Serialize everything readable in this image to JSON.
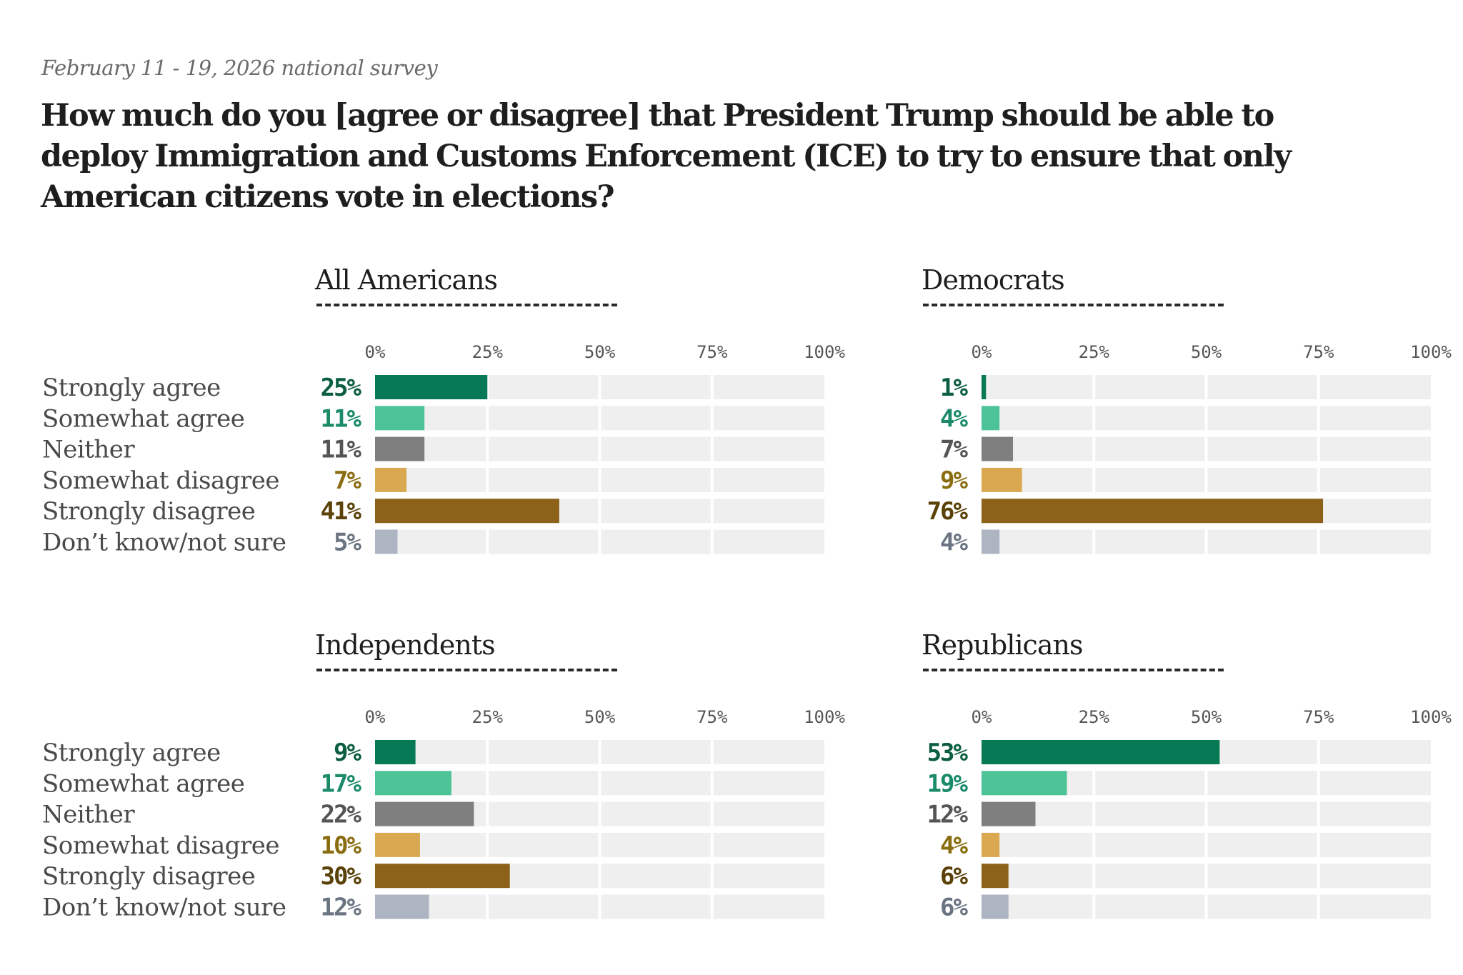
{
  "header": {
    "subtitle": "February 11 - 19, 2026 national survey",
    "title_lines": [
      "How much do you [agree or disagree] that President Trump should be able to",
      "deploy Immigration and Customs Enforcement (ICE) to try to ensure that only",
      "American citizens vote in elections?"
    ]
  },
  "colors": {
    "track": "#efefef",
    "bars": [
      "#077a55",
      "#4cc497",
      "#7f7f7f",
      "#d9a850",
      "#8b6218",
      "#adb4c2"
    ],
    "value_text": [
      "#0b5e3f",
      "#1a8a68",
      "#555555",
      "#8a6d10",
      "#5a4208",
      "#6b7482"
    ]
  },
  "chart_data": [
    {
      "type": "bar",
      "orientation": "horizontal",
      "title": "All Americans",
      "categories": [
        "Strongly agree",
        "Somewhat agree",
        "Neither",
        "Somewhat disagree",
        "Strongly disagree",
        "Don’t know/not sure"
      ],
      "values": [
        25,
        11,
        11,
        7,
        41,
        5
      ],
      "value_labels": [
        "25%",
        "11%",
        "11%",
        "7%",
        "41%",
        "5%"
      ],
      "xlim": [
        0,
        100
      ],
      "xticks": [
        "0%",
        "25%",
        "50%",
        "75%",
        "100%"
      ],
      "show_category_labels": true
    },
    {
      "type": "bar",
      "orientation": "horizontal",
      "title": "Democrats",
      "categories": [
        "Strongly agree",
        "Somewhat agree",
        "Neither",
        "Somewhat disagree",
        "Strongly disagree",
        "Don’t know/not sure"
      ],
      "values": [
        1,
        4,
        7,
        9,
        76,
        4
      ],
      "value_labels": [
        "1%",
        "4%",
        "7%",
        "9%",
        "76%",
        "4%"
      ],
      "xlim": [
        0,
        100
      ],
      "xticks": [
        "0%",
        "25%",
        "50%",
        "75%",
        "100%"
      ],
      "show_category_labels": false
    },
    {
      "type": "bar",
      "orientation": "horizontal",
      "title": "Independents",
      "categories": [
        "Strongly agree",
        "Somewhat agree",
        "Neither",
        "Somewhat disagree",
        "Strongly disagree",
        "Don’t know/not sure"
      ],
      "values": [
        9,
        17,
        22,
        10,
        30,
        12
      ],
      "value_labels": [
        "9%",
        "17%",
        "22%",
        "10%",
        "30%",
        "12%"
      ],
      "xlim": [
        0,
        100
      ],
      "xticks": [
        "0%",
        "25%",
        "50%",
        "75%",
        "100%"
      ],
      "show_category_labels": true
    },
    {
      "type": "bar",
      "orientation": "horizontal",
      "title": "Republicans",
      "categories": [
        "Strongly agree",
        "Somewhat agree",
        "Neither",
        "Somewhat disagree",
        "Strongly disagree",
        "Don’t know/not sure"
      ],
      "values": [
        53,
        19,
        12,
        4,
        6,
        6
      ],
      "value_labels": [
        "53%",
        "19%",
        "12%",
        "4%",
        "6%",
        "6%"
      ],
      "xlim": [
        0,
        100
      ],
      "xticks": [
        "0%",
        "25%",
        "50%",
        "75%",
        "100%"
      ],
      "show_category_labels": false
    }
  ]
}
